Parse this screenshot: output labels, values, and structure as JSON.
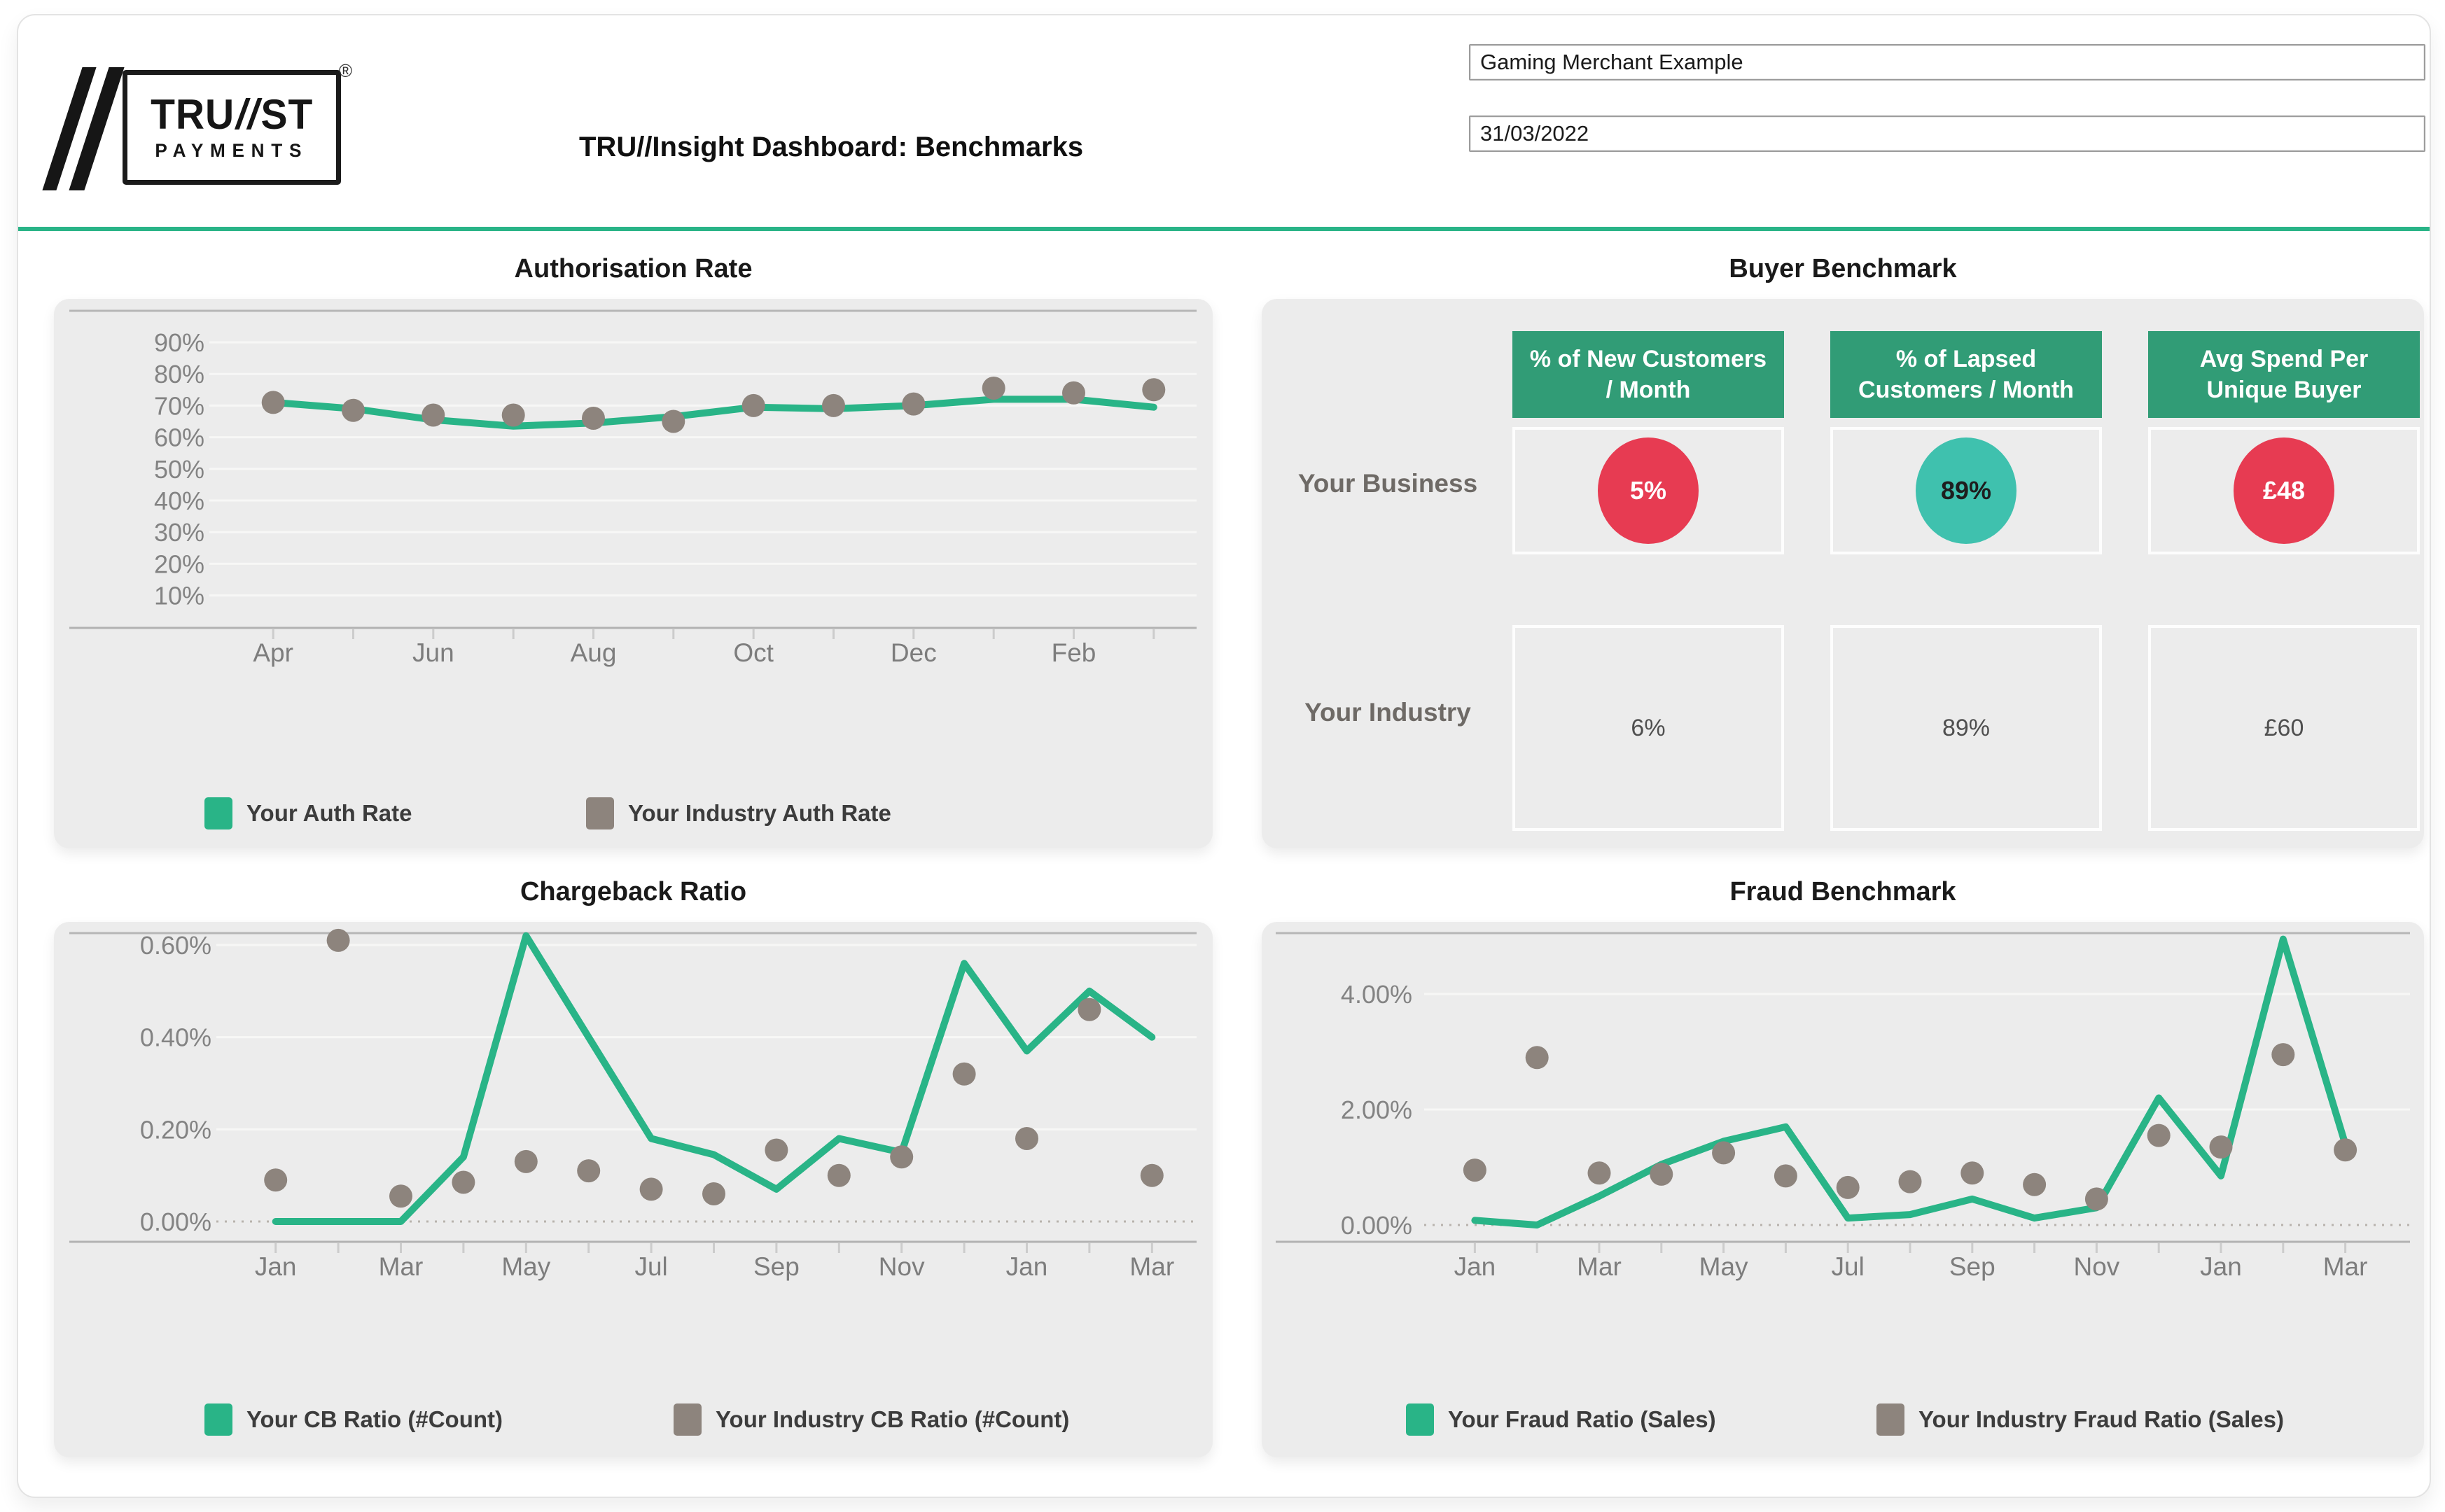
{
  "header": {
    "logo": {
      "word_start": "TRU",
      "slashes": "//",
      "word_end": "ST",
      "subtitle": "PAYMENTS",
      "registered_mark": "®"
    },
    "title": "TRU//Insight Dashboard: Benchmarks",
    "merchant_input": "Gaming Merchant Example",
    "date_input": "31/03/2022"
  },
  "colors": {
    "accent_green": "#29b487",
    "industry_gray": "#8d847d",
    "header_green": "#319c76",
    "kpi_red": "#e73b52",
    "kpi_teal": "#3fc1ae",
    "panel_bg": "#ececec"
  },
  "panels": {
    "buyer": {
      "title": "Buyer Benchmark",
      "columns": [
        "% of New Customers / Month",
        "% of Lapsed Customers / Month",
        "Avg Spend Per Unique Buyer"
      ],
      "rows": [
        {
          "label": "Your Business",
          "cells": [
            {
              "value": "5%",
              "circle_color": "#e73b52",
              "text_color": "#ffffff"
            },
            {
              "value": "89%",
              "circle_color": "#3fc1ae",
              "text_color": "#1e1e1e"
            },
            {
              "value": "£48",
              "circle_color": "#e73b52",
              "text_color": "#ffffff"
            }
          ]
        },
        {
          "label": "Your Industry",
          "cells": [
            {
              "value": "6%"
            },
            {
              "value": "89%"
            },
            {
              "value": "£60"
            }
          ]
        }
      ]
    }
  },
  "chart_data": [
    {
      "id": "auth",
      "type": "line",
      "title": "Authorisation Rate",
      "months": [
        "Apr",
        "May",
        "Jun",
        "Jul",
        "Aug",
        "Sep",
        "Oct",
        "Nov",
        "Dec",
        "Jan",
        "Feb",
        "Mar"
      ],
      "x_labeled_indices": [
        0,
        2,
        4,
        6,
        8,
        10
      ],
      "y_ticks": [
        {
          "v": 90,
          "label": "90%"
        },
        {
          "v": 80,
          "label": "80%"
        },
        {
          "v": 70,
          "label": "70%"
        },
        {
          "v": 60,
          "label": "60%"
        },
        {
          "v": 50,
          "label": "50%"
        },
        {
          "v": 40,
          "label": "40%"
        },
        {
          "v": 30,
          "label": "30%"
        },
        {
          "v": 20,
          "label": "20%"
        },
        {
          "v": 10,
          "label": "10%"
        }
      ],
      "ylim": [
        0,
        100
      ],
      "grid": "on",
      "legend_position": "bottom",
      "series": [
        {
          "name": "Your Auth Rate",
          "style": "line",
          "color": "#29b487",
          "values": [
            71,
            69,
            65.5,
            63.5,
            64.5,
            66.5,
            69.5,
            69,
            70,
            72,
            72,
            69.5
          ]
        },
        {
          "name": "Your Industry Auth Rate",
          "style": "dots",
          "color": "#8d847d",
          "values": [
            71,
            68.5,
            67,
            67,
            66,
            65,
            70,
            70,
            70.5,
            75.5,
            74,
            75
          ]
        }
      ]
    },
    {
      "id": "cb",
      "type": "line",
      "title": "Chargeback Ratio",
      "months": [
        "Jan",
        "Feb",
        "Mar",
        "Apr",
        "May",
        "Jun",
        "Jul",
        "Aug",
        "Sep",
        "Oct",
        "Nov",
        "Dec",
        "Jan",
        "Feb",
        "Mar"
      ],
      "x_labeled_indices": [
        0,
        2,
        4,
        6,
        8,
        10,
        12,
        14
      ],
      "y_ticks": [
        {
          "v": 0.6,
          "label": "0.60%"
        },
        {
          "v": 0.4,
          "label": "0.40%"
        },
        {
          "v": 0.2,
          "label": "0.20%"
        },
        {
          "v": 0,
          "label": "0.00%"
        }
      ],
      "ylim": [
        -0.04,
        0.63
      ],
      "grid": "on",
      "legend_position": "bottom",
      "series": [
        {
          "name": "Your CB Ratio (#Count)",
          "style": "line",
          "color": "#29b487",
          "values": [
            0,
            0,
            0,
            0.14,
            0.62,
            0.4,
            0.18,
            0.145,
            0.07,
            0.18,
            0.15,
            0.56,
            0.37,
            0.5,
            0.4
          ]
        },
        {
          "name": "Your Industry CB Ratio (#Count)",
          "style": "dots",
          "color": "#8d847d",
          "values": [
            0.09,
            0.61,
            0.055,
            0.085,
            0.13,
            0.11,
            0.07,
            0.06,
            0.155,
            0.1,
            0.14,
            0.32,
            0.18,
            0.46,
            0.1
          ]
        }
      ]
    },
    {
      "id": "fraud",
      "type": "line",
      "title": "Fraud Benchmark",
      "months": [
        "Jan",
        "Feb",
        "Mar",
        "Apr",
        "May",
        "Jun",
        "Jul",
        "Aug",
        "Sep",
        "Oct",
        "Nov",
        "Dec",
        "Jan",
        "Feb",
        "Mar"
      ],
      "x_labeled_indices": [
        0,
        2,
        4,
        6,
        8,
        10,
        12,
        14
      ],
      "y_ticks": [
        {
          "v": 4,
          "label": "4.00%"
        },
        {
          "v": 2,
          "label": "2.00%"
        },
        {
          "v": 0,
          "label": "0.00%"
        }
      ],
      "ylim": [
        -0.3,
        5.05
      ],
      "grid": "on",
      "legend_position": "bottom",
      "series": [
        {
          "name": "Your Fraud Ratio (Sales)",
          "style": "line",
          "color": "#29b487",
          "values": [
            0.08,
            0,
            0.5,
            1.05,
            1.45,
            1.7,
            0.12,
            0.18,
            0.45,
            0.12,
            0.3,
            2.2,
            0.85,
            4.95,
            1.4
          ]
        },
        {
          "name": "Your Industry Fraud Ratio (Sales)",
          "style": "dots",
          "color": "#8d847d",
          "values": [
            0.95,
            2.9,
            0.9,
            0.88,
            1.25,
            0.85,
            0.65,
            0.75,
            0.9,
            0.7,
            0.45,
            1.55,
            1.35,
            2.95,
            1.3
          ]
        }
      ]
    }
  ]
}
